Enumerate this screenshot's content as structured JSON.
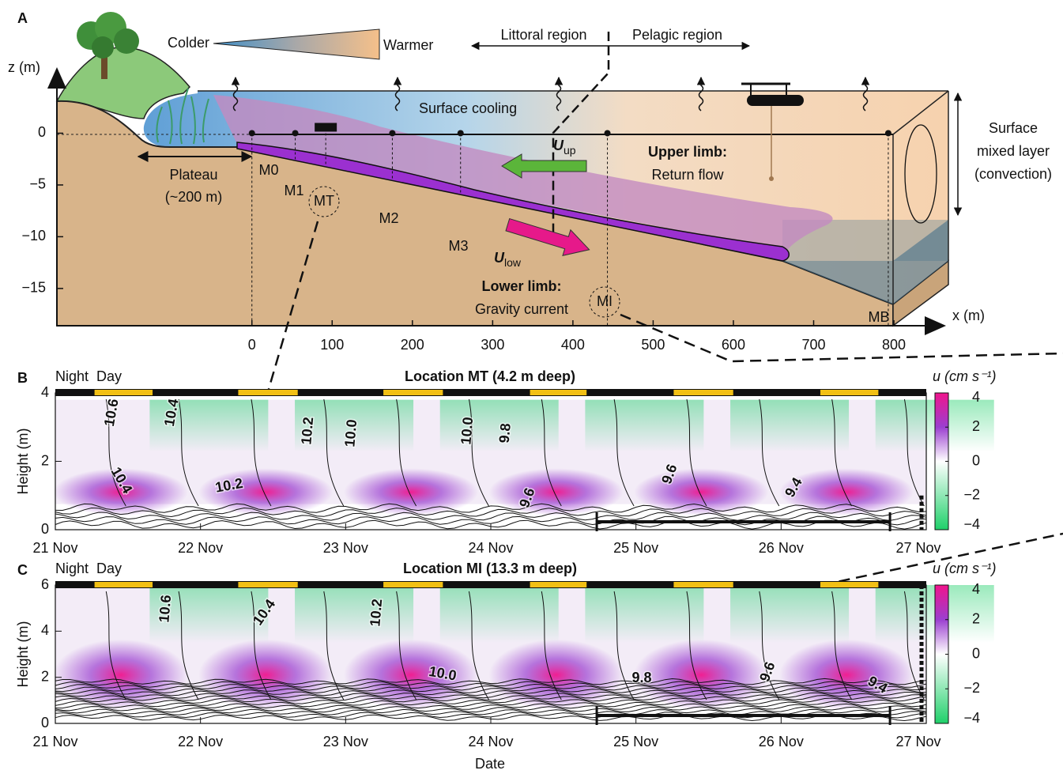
{
  "panel_a": {
    "label": "A",
    "y_label": "z (m)",
    "x_label": "x (m)",
    "xlim": [
      -243,
      863
    ],
    "ylim": [
      -18.6,
      6.3
    ],
    "xticks": [
      0,
      100,
      200,
      300,
      400,
      500,
      600,
      700,
      800
    ],
    "yticks": [
      0,
      {
        "value": -5,
        "label": "−5"
      },
      {
        "value": -10,
        "label": "−10"
      },
      {
        "value": -15,
        "label": "−15"
      }
    ],
    "colder": "Colder",
    "warmer": "Warmer",
    "littoral": "Littoral region",
    "pelagic": "Pelagic region",
    "surface_cooling": "Surface cooling",
    "mixed_layer": [
      "Surface",
      "mixed layer",
      "(convection)"
    ],
    "plateau": [
      "Plateau",
      "(~200 m)"
    ],
    "moorings": [
      {
        "name": "M0",
        "x": 0
      },
      {
        "name": "M1",
        "x": 54
      },
      {
        "name": "MT",
        "x": 92
      },
      {
        "name": "M2",
        "x": 175
      },
      {
        "name": "M3",
        "x": 260
      },
      {
        "name": "MI",
        "x": 443
      },
      {
        "name": "MB",
        "x": 793
      }
    ],
    "upper_limb": {
      "symbol": "U",
      "subscript": "up",
      "title": "Upper limb:",
      "text": "Return flow"
    },
    "lower_limb": {
      "symbol": "U",
      "subscript": "low",
      "title": "Lower limb:",
      "text": "Gravity current"
    }
  },
  "chart_data": [
    {
      "type": "heatmap",
      "panel": "B",
      "title": "Location MT (4.2 m deep)",
      "night_label": "Night",
      "day_label": "Day",
      "y_label": "Height (m)",
      "xlim": [
        0,
        6
      ],
      "xticks": [
        {
          "value": 0,
          "label": "21 Nov"
        },
        {
          "value": 1,
          "label": "22 Nov"
        },
        {
          "value": 2,
          "label": "23 Nov"
        },
        {
          "value": 3,
          "label": "24 Nov"
        },
        {
          "value": 4,
          "label": "25 Nov"
        },
        {
          "value": 5,
          "label": "26 Nov"
        },
        {
          "value": 6,
          "label": "27 Nov"
        }
      ],
      "ylim": [
        0,
        4
      ],
      "yticks": [
        0,
        2,
        4
      ],
      "daytime": [
        [
          0.27,
          0.67
        ],
        [
          1.26,
          1.67
        ],
        [
          2.26,
          2.67
        ],
        [
          3.27,
          3.66
        ],
        [
          4.26,
          4.67
        ],
        [
          5.27,
          5.67
        ]
      ],
      "colorbar": {
        "label": "u (cm s⁻¹)",
        "lim": [
          -4,
          4
        ],
        "ticks": [
          {
            "value": -4,
            "label": "−4"
          },
          {
            "value": -2,
            "label": "−2"
          },
          0,
          2,
          4
        ],
        "colors": [
          "#1fd06a",
          "#ffffff",
          "#9b3fd0",
          "#f0148c"
        ]
      },
      "contour_labels": [
        "10.6",
        "10.4",
        "10.2",
        "10.0",
        "10.0",
        "9.8",
        "10.4",
        "10.2",
        "9.6",
        "9.6",
        "9.4"
      ]
    },
    {
      "type": "heatmap",
      "panel": "C",
      "title": "Location MI (13.3 m deep)",
      "night_label": "Night",
      "day_label": "Day",
      "y_label": "Height (m)",
      "x_label": "Date",
      "xlim": [
        0,
        6
      ],
      "xticks": [
        {
          "value": 0,
          "label": "21 Nov"
        },
        {
          "value": 1,
          "label": "22 Nov"
        },
        {
          "value": 2,
          "label": "23 Nov"
        },
        {
          "value": 3,
          "label": "24 Nov"
        },
        {
          "value": 4,
          "label": "25 Nov"
        },
        {
          "value": 5,
          "label": "26 Nov"
        },
        {
          "value": 6,
          "label": "27 Nov"
        }
      ],
      "ylim": [
        0,
        6
      ],
      "yticks": [
        0,
        2,
        4,
        6
      ],
      "daytime": [
        [
          0.27,
          0.67
        ],
        [
          1.26,
          1.67
        ],
        [
          2.26,
          2.67
        ],
        [
          3.27,
          3.66
        ],
        [
          4.26,
          4.67
        ],
        [
          5.27,
          5.67
        ]
      ],
      "colorbar": {
        "label": "u (cm s⁻¹)",
        "lim": [
          -4,
          4
        ],
        "ticks": [
          {
            "value": -4,
            "label": "−4"
          },
          {
            "value": -2,
            "label": "−2"
          },
          0,
          2,
          4
        ],
        "colors": [
          "#1fd06a",
          "#ffffff",
          "#9b3fd0",
          "#f0148c"
        ]
      },
      "contour_labels": [
        "10.6",
        "10.4",
        "10.2",
        "10.0",
        "9.8",
        "9.6",
        "9.4"
      ]
    }
  ]
}
